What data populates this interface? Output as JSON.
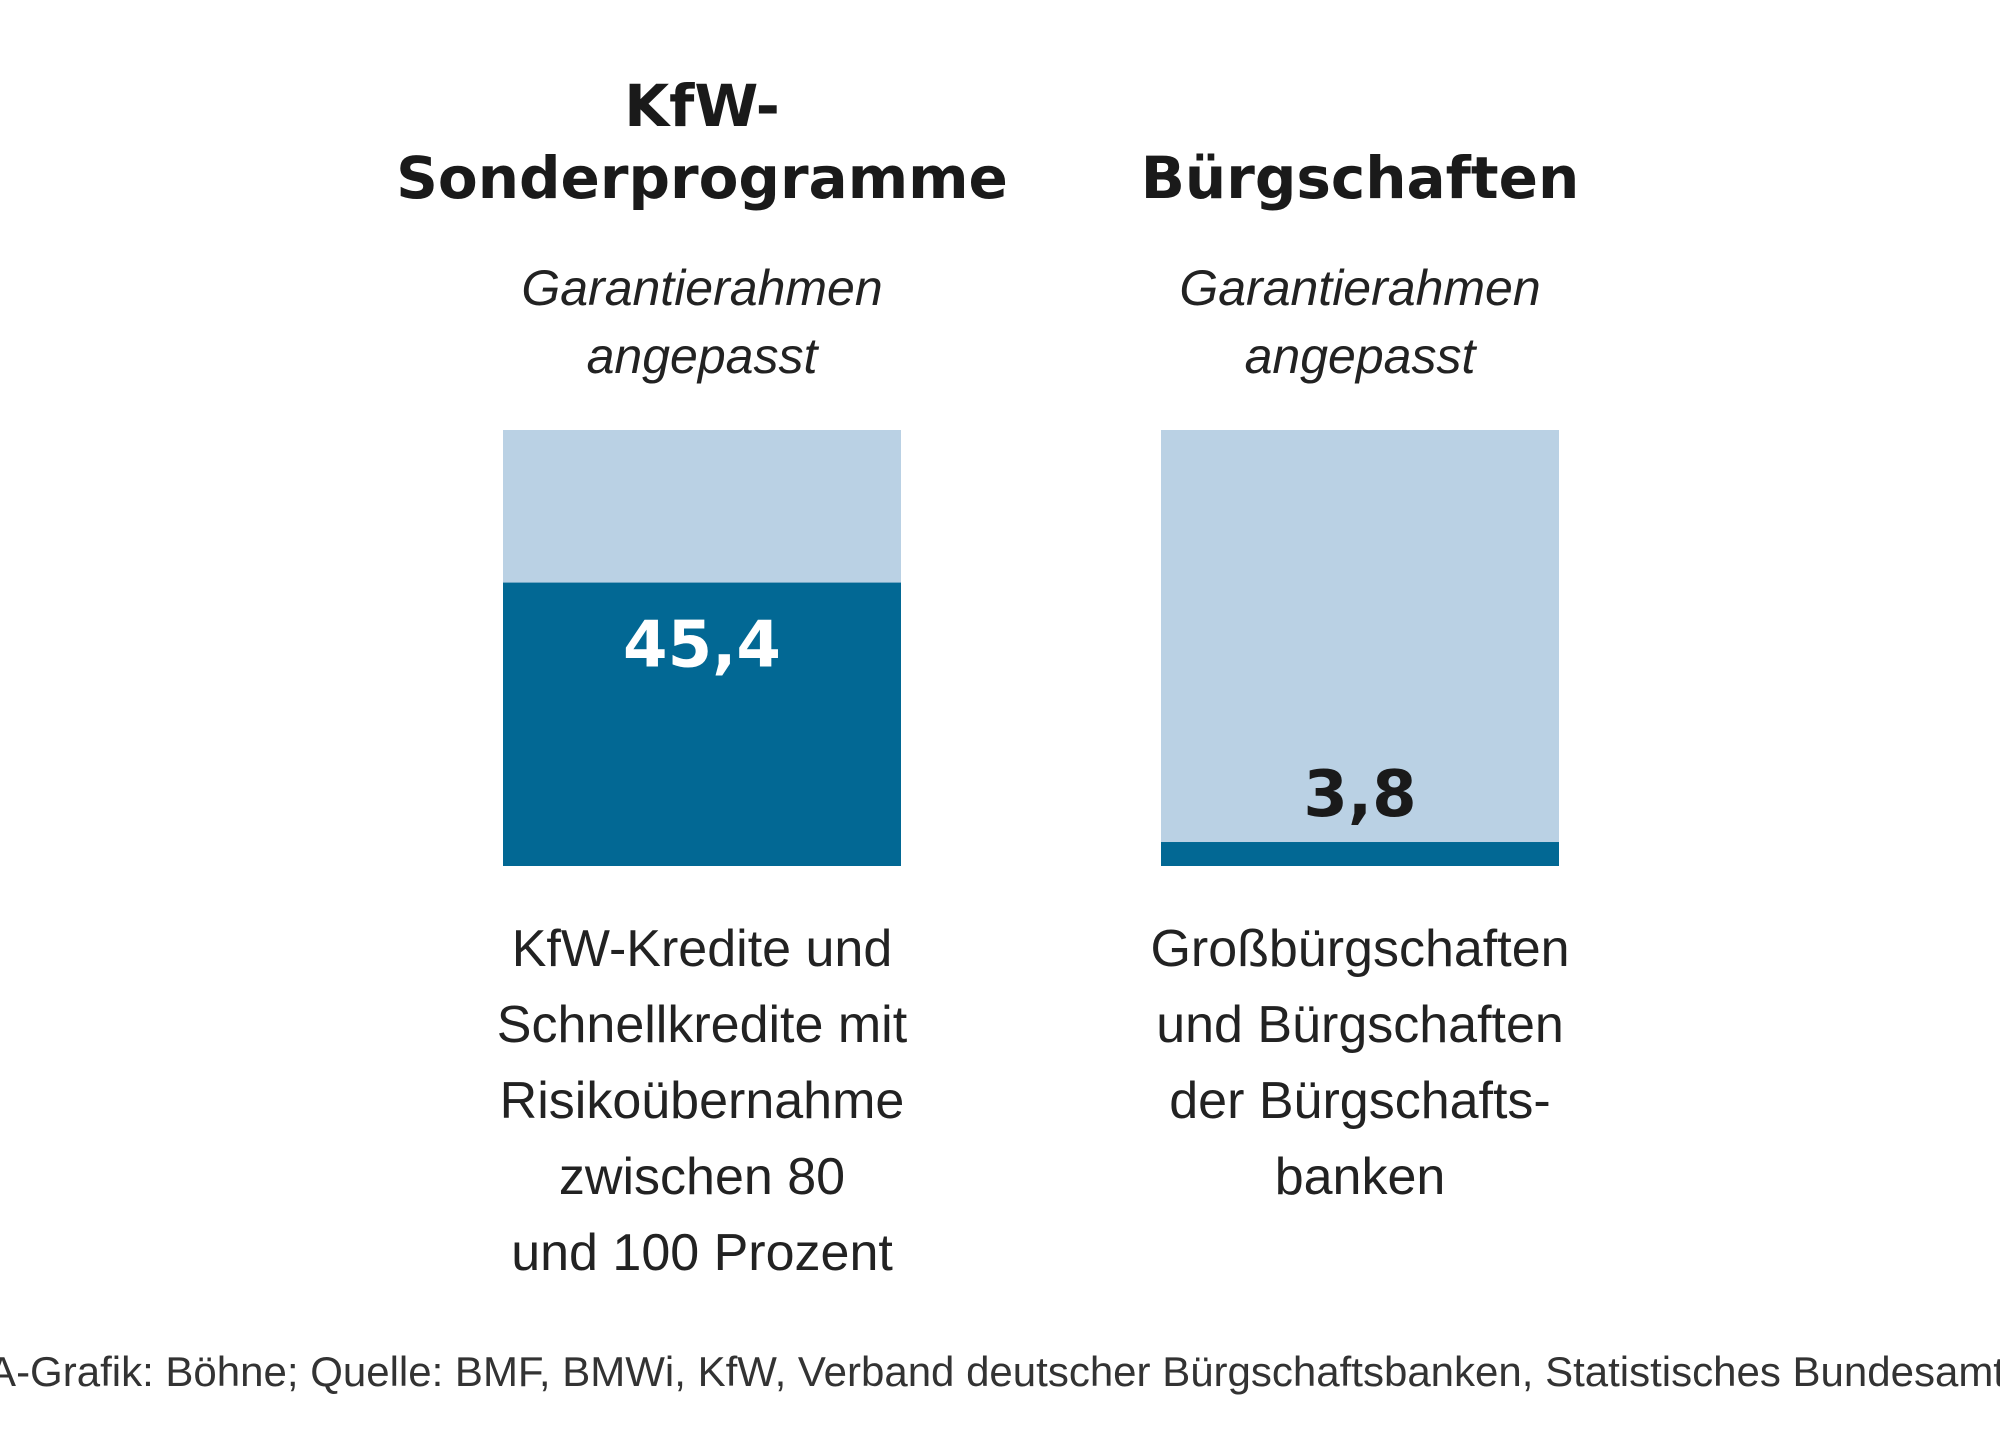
{
  "chart_data": {
    "type": "bar",
    "colors": {
      "used": "#026894",
      "frame": "#bad1e4"
    },
    "panels": [
      {
        "title_lines": [
          "KfW-",
          "Sonderprogramme"
        ],
        "subtitle_lines": [
          "Garantierahmen",
          "angepasst"
        ],
        "value": 45.4,
        "value_label": "45,4",
        "filled_fraction": 0.65,
        "description_lines": [
          "KfW-Kredite und",
          "Schnellkredite mit",
          "Risikoübernahme",
          "zwischen 80",
          "und 100 Prozent"
        ]
      },
      {
        "title_lines": [
          "Bürgschaften"
        ],
        "subtitle_lines": [
          "Garantierahmen",
          "angepasst"
        ],
        "value": 3.8,
        "value_label": "3,8",
        "filled_fraction": 0.055,
        "description_lines": [
          "Großbürgschaften",
          "und Bürgschaften",
          "der Bürgschafts-",
          "banken"
        ]
      }
    ],
    "source": "KStA-Grafik: Böhne; Quelle: BMF, BMWi, KfW, Verband deutscher Bürgschaftsbanken, Statistisches Bundesamt, IW"
  }
}
